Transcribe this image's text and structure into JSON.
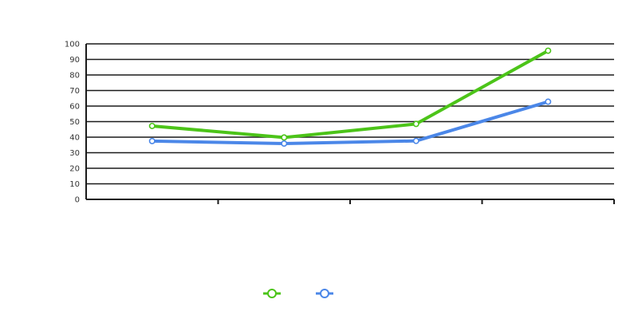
{
  "chart_data": {
    "type": "line",
    "title": "",
    "unit_label": "",
    "x": [
      "",
      "",
      "",
      ""
    ],
    "series": [
      {
        "name": "",
        "color": "#4cc419",
        "values": [
          47.2,
          39.8,
          48.5,
          95.6
        ],
        "labels": [
          "",
          "",
          "",
          ""
        ]
      },
      {
        "name": "",
        "color": "#4b87e8",
        "values": [
          37.5,
          35.9,
          37.6,
          62.8
        ],
        "labels": [
          "",
          "",
          "",
          ""
        ]
      }
    ],
    "ylim": [
      0,
      100
    ],
    "yticks": [
      0,
      10,
      20,
      30,
      40,
      50,
      60,
      70,
      80,
      90,
      100
    ],
    "grid": true,
    "legend_position": "bottom-center",
    "source": ""
  }
}
